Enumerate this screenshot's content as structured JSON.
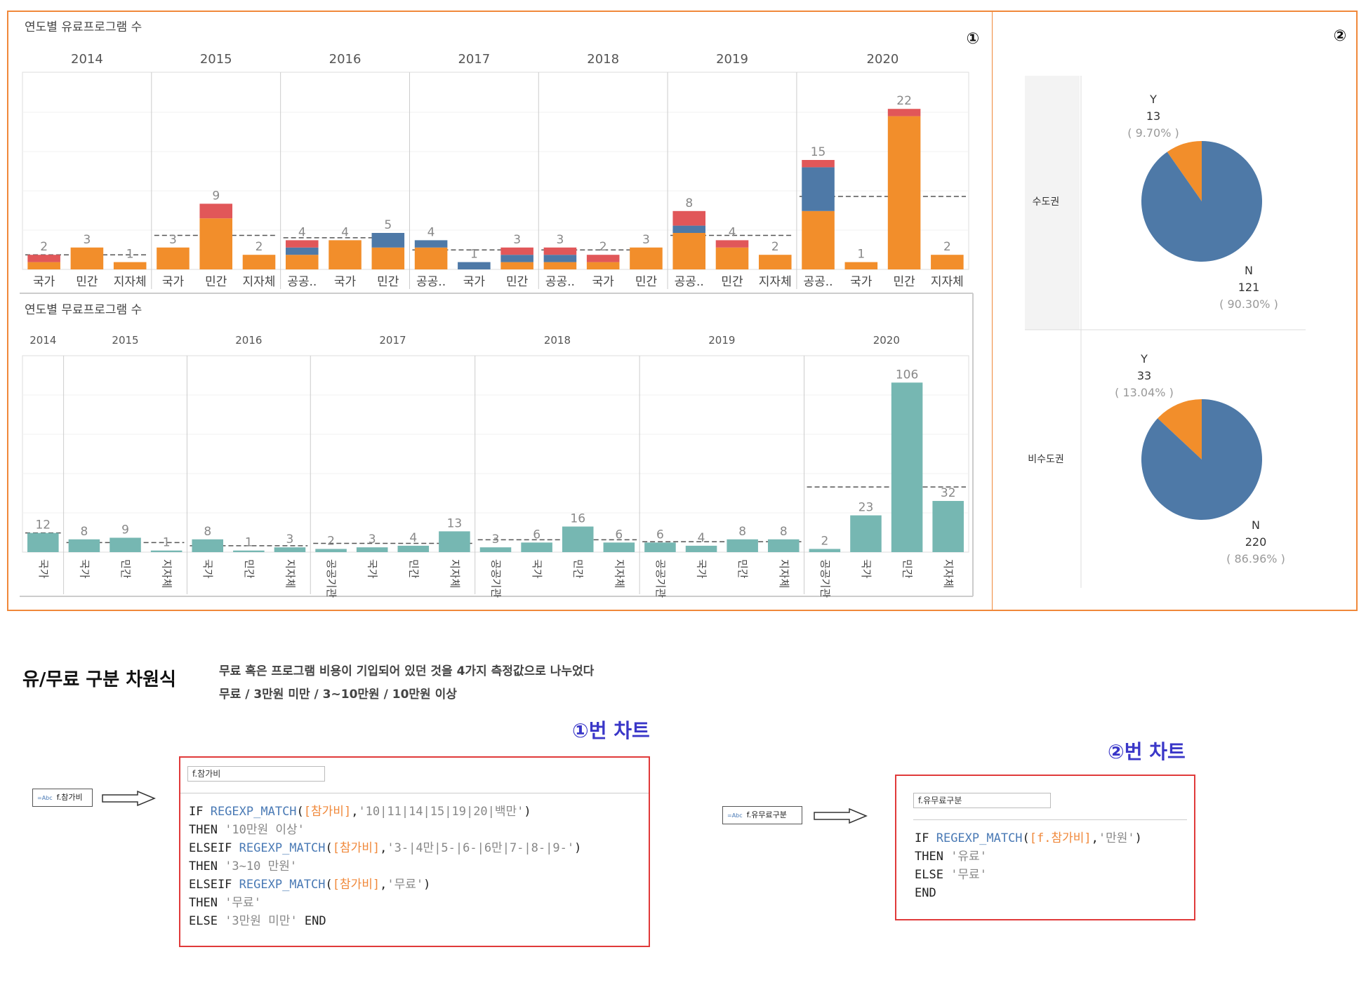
{
  "colors": {
    "orange": "#f28e2b",
    "blue": "#4e79a7",
    "red": "#e15759",
    "teal": "#76b7b2",
    "frame": "#f0883a",
    "highlight": "#3a37c8"
  },
  "chart1": {
    "marker": "①",
    "paid_title": "연도별 유료프로그램 수",
    "free_title": "연도별 무료프로그램 수"
  },
  "chart_data": [
    {
      "type": "bar",
      "title": "연도별 유료프로그램 수",
      "stacked": true,
      "years": [
        "2014",
        "2015",
        "2016",
        "2017",
        "2018",
        "2019",
        "2020"
      ],
      "categories": [
        {
          "year": "2014",
          "label": "국가",
          "total": 2,
          "segments": {
            "orange": 1,
            "blue": 0,
            "red": 1
          }
        },
        {
          "year": "2014",
          "label": "민간",
          "total": 3,
          "segments": {
            "orange": 3,
            "blue": 0,
            "red": 0
          }
        },
        {
          "year": "2014",
          "label": "지자체",
          "total": 1,
          "segments": {
            "orange": 1,
            "blue": 0,
            "red": 0
          }
        },
        {
          "year": "2015",
          "label": "국가",
          "total": 3,
          "segments": {
            "orange": 3,
            "blue": 0,
            "red": 0
          }
        },
        {
          "year": "2015",
          "label": "민간",
          "total": 9,
          "segments": {
            "orange": 7,
            "blue": 0,
            "red": 2
          }
        },
        {
          "year": "2015",
          "label": "지자체",
          "total": 2,
          "segments": {
            "orange": 2,
            "blue": 0,
            "red": 0
          }
        },
        {
          "year": "2016",
          "label": "공공..",
          "total": 4,
          "segments": {
            "orange": 2,
            "blue": 1,
            "red": 1
          }
        },
        {
          "year": "2016",
          "label": "국가",
          "total": 4,
          "segments": {
            "orange": 4,
            "blue": 0,
            "red": 0
          }
        },
        {
          "year": "2016",
          "label": "민간",
          "total": 5,
          "segments": {
            "orange": 3,
            "blue": 2,
            "red": 0
          }
        },
        {
          "year": "2017",
          "label": "공공..",
          "total": 4,
          "segments": {
            "orange": 3,
            "blue": 1,
            "red": 0
          }
        },
        {
          "year": "2017",
          "label": "국가",
          "total": 1,
          "segments": {
            "orange": 0,
            "blue": 1,
            "red": 0
          }
        },
        {
          "year": "2017",
          "label": "민간",
          "total": 3,
          "segments": {
            "orange": 1,
            "blue": 1,
            "red": 1
          }
        },
        {
          "year": "2018",
          "label": "공공..",
          "total": 3,
          "segments": {
            "orange": 1,
            "blue": 1,
            "red": 1
          }
        },
        {
          "year": "2018",
          "label": "국가",
          "total": 2,
          "segments": {
            "orange": 1,
            "blue": 0,
            "red": 1
          }
        },
        {
          "year": "2018",
          "label": "민간",
          "total": 3,
          "segments": {
            "orange": 3,
            "blue": 0,
            "red": 0
          }
        },
        {
          "year": "2019",
          "label": "공공..",
          "total": 8,
          "segments": {
            "orange": 5,
            "blue": 1,
            "red": 2
          }
        },
        {
          "year": "2019",
          "label": "민간",
          "total": 4,
          "segments": {
            "orange": 3,
            "blue": 0,
            "red": 1
          }
        },
        {
          "year": "2019",
          "label": "지자체",
          "total": 2,
          "segments": {
            "orange": 2,
            "blue": 0,
            "red": 0
          }
        },
        {
          "year": "2020",
          "label": "공공..",
          "total": 15,
          "segments": {
            "orange": 8,
            "blue": 6,
            "red": 1
          }
        },
        {
          "year": "2020",
          "label": "국가",
          "total": 1,
          "segments": {
            "orange": 1,
            "blue": 0,
            "red": 0
          }
        },
        {
          "year": "2020",
          "label": "민간",
          "total": 22,
          "segments": {
            "orange": 21,
            "blue": 0,
            "red": 1
          }
        },
        {
          "year": "2020",
          "label": "지자체",
          "total": 2,
          "segments": {
            "orange": 2,
            "blue": 0,
            "red": 0
          }
        }
      ],
      "ylim": [
        0,
        26
      ]
    },
    {
      "type": "bar",
      "title": "연도별 무료프로그램 수",
      "years": [
        "2014",
        "2015",
        "2016",
        "2017",
        "2018",
        "2019",
        "2020"
      ],
      "categories": [
        {
          "year": "2014",
          "label": "국가",
          "value": 12
        },
        {
          "year": "2015",
          "label": "국가",
          "value": 8
        },
        {
          "year": "2015",
          "label": "민간",
          "value": 9
        },
        {
          "year": "2015",
          "label": "지자체",
          "value": 1
        },
        {
          "year": "2016",
          "label": "국가",
          "value": 8
        },
        {
          "year": "2016",
          "label": "민간",
          "value": 1
        },
        {
          "year": "2016",
          "label": "지자체",
          "value": 3
        },
        {
          "year": "2017",
          "label": "공공기관",
          "value": 2
        },
        {
          "year": "2017",
          "label": "국가",
          "value": 3
        },
        {
          "year": "2017",
          "label": "민간",
          "value": 4
        },
        {
          "year": "2017",
          "label": "지자체",
          "value": 13
        },
        {
          "year": "2018",
          "label": "공공기관",
          "value": 3
        },
        {
          "year": "2018",
          "label": "국가",
          "value": 6
        },
        {
          "year": "2018",
          "label": "민간",
          "value": 16
        },
        {
          "year": "2018",
          "label": "지자체",
          "value": 6
        },
        {
          "year": "2019",
          "label": "공공기관",
          "value": 6
        },
        {
          "year": "2019",
          "label": "국가",
          "value": 4
        },
        {
          "year": "2019",
          "label": "민간",
          "value": 8
        },
        {
          "year": "2019",
          "label": "지자체",
          "value": 8
        },
        {
          "year": "2020",
          "label": "공공기관",
          "value": 2
        },
        {
          "year": "2020",
          "label": "국가",
          "value": 23
        },
        {
          "year": "2020",
          "label": "민간",
          "value": 106
        },
        {
          "year": "2020",
          "label": "지자체",
          "value": 32
        }
      ],
      "ylim": [
        0,
        122
      ]
    },
    {
      "type": "pie",
      "marker": "②",
      "rows": [
        {
          "label": "수도권",
          "slices": [
            {
              "name": "Y",
              "value": 13,
              "pct": "( 9.70% )",
              "color": "#f28e2b"
            },
            {
              "name": "N",
              "value": 121,
              "pct": "( 90.30% )",
              "color": "#4e79a7"
            }
          ]
        },
        {
          "label": "비수도권",
          "slices": [
            {
              "name": "Y",
              "value": 33,
              "pct": "( 13.04% )",
              "color": "#f28e2b"
            },
            {
              "name": "N",
              "value": 220,
              "pct": "( 86.96% )",
              "color": "#4e79a7"
            }
          ]
        }
      ]
    }
  ],
  "section": {
    "title": "유/무료 구분 차원식",
    "desc1": "무료 혹은 프로그램 비용이 기입되어 있던 것을 4가지 측정값으로 나누었다",
    "desc2": "무료 / 3만원 미만 / 3~10만원 / 10만원 이상"
  },
  "formula1": {
    "ref": "①번 차트",
    "pill_abc": "=Abc",
    "pill_label": "f.참가비",
    "name": "f.참가비"
  },
  "formula2": {
    "ref": "②번 차트",
    "pill_abc": "=Abc",
    "pill_label": "f.유무료구분",
    "name": "f.유무료구분"
  }
}
